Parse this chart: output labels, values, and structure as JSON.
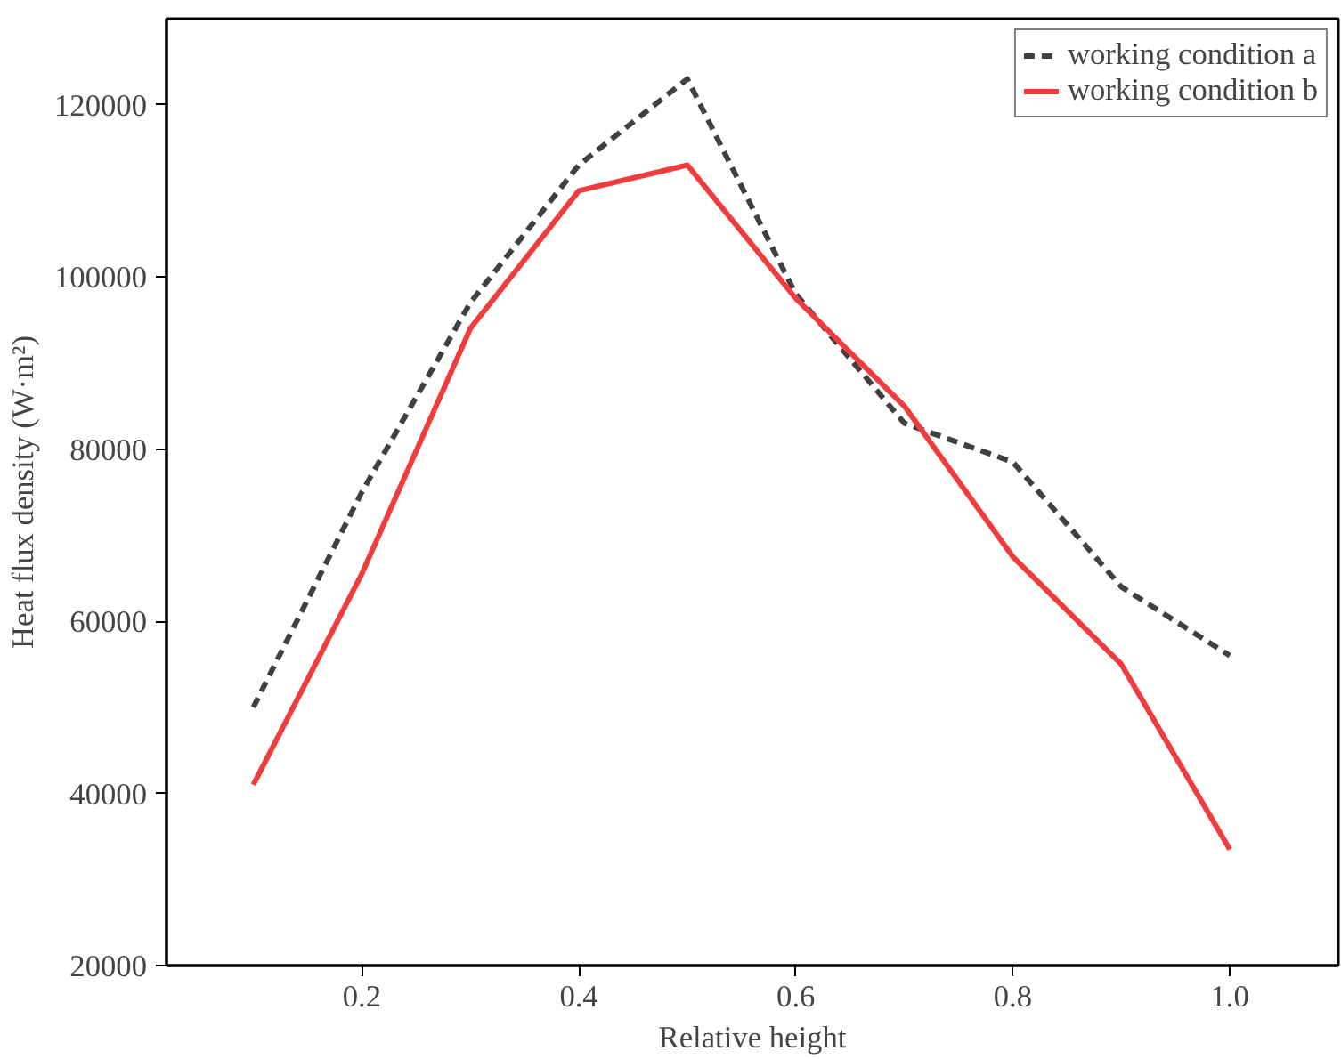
{
  "chart_data": {
    "type": "line",
    "xlabel": "Relative height",
    "ylabel": "Heat flux density (W·m²)",
    "x": [
      0.1,
      0.2,
      0.3,
      0.4,
      0.5,
      0.6,
      0.7,
      0.8,
      0.9,
      1.0
    ],
    "series": [
      {
        "name": "working condition a",
        "color": "#404040",
        "line_style": "dashed",
        "values": [
          50000,
          75000,
          97000,
          113000,
          123000,
          98000,
          83000,
          78500,
          64000,
          56000
        ]
      },
      {
        "name": "working condition b",
        "color": "#f03c3c",
        "line_style": "solid",
        "values": [
          41000,
          65500,
          94000,
          110000,
          113000,
          97500,
          85000,
          67500,
          55000,
          33500
        ]
      }
    ],
    "xlim": [
      0.02,
      1.1
    ],
    "xticks": [
      {
        "value": 0.2,
        "label": "0.2"
      },
      {
        "value": 0.4,
        "label": "0.4"
      },
      {
        "value": 0.6,
        "label": "0.6"
      },
      {
        "value": 0.8,
        "label": "0.8"
      },
      {
        "value": 1.0,
        "label": "1.0"
      }
    ],
    "ylim": [
      20000,
      130000
    ],
    "yticks": [
      20000,
      40000,
      60000,
      80000,
      100000,
      120000
    ],
    "grid": false,
    "legend": "top right",
    "marker": "none"
  }
}
